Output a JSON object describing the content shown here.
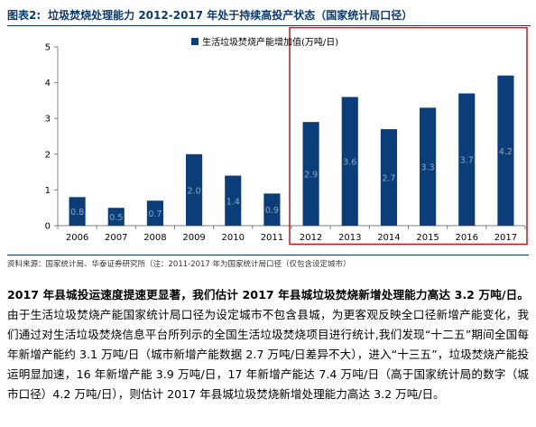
{
  "figure": {
    "label": "图表2:",
    "title": "垃圾焚烧处理能力 2012-2017 年处于持续高投产状态（国家统计局口径）",
    "source": "资料来源：国家统计局、华泰证券研究所（注：2011-2017 年为国家统计局口径（仅包含设定城市）"
  },
  "chart_data": {
    "type": "bar",
    "categories": [
      "2006",
      "2007",
      "2008",
      "2009",
      "2010",
      "2011",
      "2012",
      "2013",
      "2014",
      "2015",
      "2016",
      "2017"
    ],
    "series": [
      {
        "name": "生活垃圾焚烧产能增加值(万吨/日)",
        "values": [
          0.8,
          0.5,
          0.7,
          2.0,
          1.4,
          0.9,
          2.9,
          3.6,
          2.7,
          3.3,
          3.7,
          4.2
        ],
        "labels": [
          "0.8",
          "0.5",
          "0.7",
          "2.0",
          "1.4",
          "0.9",
          "2.9",
          "3.6",
          "2.7",
          "3.3",
          "3.7",
          "4.2"
        ]
      }
    ],
    "ylim": [
      0,
      5
    ],
    "yticks": [
      "0",
      "1",
      "2",
      "3",
      "4",
      "5"
    ],
    "grid": false,
    "legend": "top",
    "highlight_range": [
      "2012",
      "2017"
    ],
    "colors": {
      "bar": "#0b3e78",
      "label": "#8ea6c4",
      "highlight_box": "#c0161c",
      "axis": "#7f7f7f"
    }
  },
  "body": {
    "lead": "2017 年县城投运速度提速更显著，我们估计 2017 年县城垃圾焚烧新增处理能力高达 3.2 万吨/日。",
    "text": "由于生活垃圾焚烧产能国家统计局口径为设定城市不包含县城，为更客观反映全口径新增产能变化，我们通过对生活垃圾焚烧信息平台所列示的全国生活垃圾焚烧项目进行统计,我们发现“十二五”期间全国每年新增产能约 3.1 万吨/日（城市新增产能数据 2.7 万吨/日差异不大），进入“十三五”，垃圾焚烧产能投运明显加速，16 年新增产能 3.9 万吨/日，17 年新增产能达 7.4 万吨/日（高于国家统计局的数字（城市口径）4.2 万吨/日），则估计 2017 年县城垃圾焚烧新增处理能力高达 3.2 万吨/日。"
  }
}
